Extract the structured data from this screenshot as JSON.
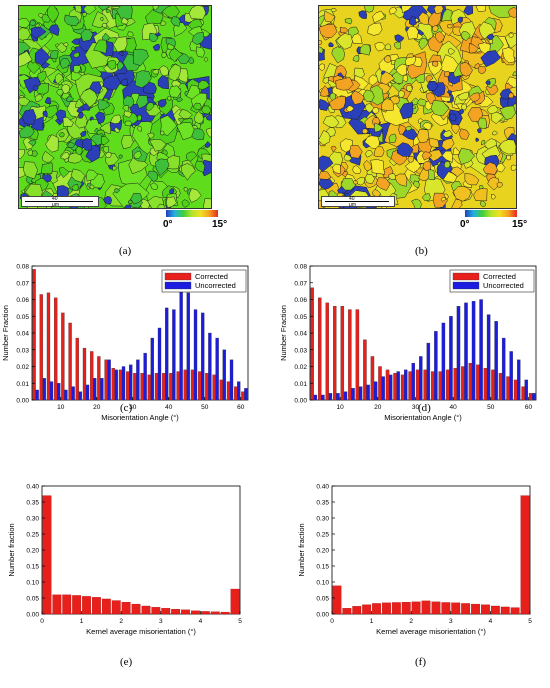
{
  "maps": [
    {
      "panel_label": "(a)",
      "scale_text": "40 μm",
      "cb_min": "0°",
      "cb_max": "15°",
      "base_color": "#5fdc1c",
      "colors": [
        "#4fd01a",
        "#6ee324",
        "#3dbf3a",
        "#2a3fb8",
        "#89e02a",
        "#a6e83a"
      ]
    },
    {
      "panel_label": "(b)",
      "scale_text": "40 μm",
      "cb_min": "0°",
      "cb_max": "15°",
      "base_color": "#e8d41f",
      "colors": [
        "#f0c020",
        "#d9e62c",
        "#9cd829",
        "#f2a322",
        "#2a3fb8",
        "#f5e62e"
      ]
    }
  ],
  "colorbar_colors": [
    "#1f3fbf",
    "#23b0e0",
    "#3dcf3a",
    "#b6e32a",
    "#f0e020",
    "#f5a020",
    "#e8281e"
  ],
  "chart_data": [
    {
      "type": "bar",
      "panel_label": "(c)",
      "xlabel": "Misorientation Angle (°)",
      "ylabel": "Number Fraction",
      "xlim": [
        2,
        62
      ],
      "ylim": [
        0,
        0.08
      ],
      "xticks": [
        "10",
        "20",
        "30",
        "40",
        "50",
        "60"
      ],
      "yticks": [
        "0.00",
        "0.01",
        "0.02",
        "0.03",
        "0.04",
        "0.05",
        "0.06",
        "0.07",
        "0.08"
      ],
      "legend_position": "top-right",
      "series": [
        {
          "name": "Corrected",
          "color": "#e8201c",
          "x": [
            3,
            5,
            7,
            9,
            11,
            13,
            15,
            17,
            19,
            21,
            23,
            25,
            27,
            29,
            31,
            33,
            35,
            37,
            39,
            41,
            43,
            45,
            47,
            49,
            51,
            53,
            55,
            57,
            59,
            61
          ],
          "values": [
            0.078,
            0.063,
            0.064,
            0.061,
            0.052,
            0.046,
            0.037,
            0.031,
            0.029,
            0.026,
            0.024,
            0.019,
            0.018,
            0.017,
            0.016,
            0.016,
            0.015,
            0.016,
            0.016,
            0.016,
            0.017,
            0.018,
            0.018,
            0.017,
            0.016,
            0.015,
            0.012,
            0.011,
            0.008,
            0.005
          ]
        },
        {
          "name": "Uncorrected",
          "color": "#1c1ce0",
          "x": [
            3,
            5,
            7,
            9,
            11,
            13,
            15,
            17,
            19,
            21,
            23,
            25,
            27,
            29,
            31,
            33,
            35,
            37,
            39,
            41,
            43,
            45,
            47,
            49,
            51,
            53,
            55,
            57,
            59,
            61
          ],
          "values": [
            0.006,
            0.013,
            0.011,
            0.01,
            0.006,
            0.008,
            0.005,
            0.009,
            0.013,
            0.013,
            0.024,
            0.018,
            0.02,
            0.021,
            0.024,
            0.028,
            0.037,
            0.043,
            0.055,
            0.054,
            0.065,
            0.064,
            0.054,
            0.052,
            0.04,
            0.037,
            0.03,
            0.024,
            0.011,
            0.007
          ]
        }
      ]
    },
    {
      "type": "bar",
      "panel_label": "(d)",
      "xlabel": "Misorientation Angle (°)",
      "ylabel": "Number Fraction",
      "xlim": [
        2,
        62
      ],
      "ylim": [
        0,
        0.08
      ],
      "xticks": [
        "10",
        "20",
        "30",
        "40",
        "50",
        "60"
      ],
      "yticks": [
        "0.00",
        "0.01",
        "0.02",
        "0.03",
        "0.04",
        "0.05",
        "0.06",
        "0.07",
        "0.08"
      ],
      "legend_position": "top-right",
      "series": [
        {
          "name": "Corrected",
          "color": "#e8201c",
          "x": [
            3,
            5,
            7,
            9,
            11,
            13,
            15,
            17,
            19,
            21,
            23,
            25,
            27,
            29,
            31,
            33,
            35,
            37,
            39,
            41,
            43,
            45,
            47,
            49,
            51,
            53,
            55,
            57,
            59,
            61
          ],
          "values": [
            0.067,
            0.061,
            0.058,
            0.056,
            0.056,
            0.054,
            0.054,
            0.036,
            0.026,
            0.02,
            0.018,
            0.016,
            0.015,
            0.017,
            0.018,
            0.018,
            0.017,
            0.017,
            0.018,
            0.019,
            0.02,
            0.022,
            0.021,
            0.019,
            0.018,
            0.016,
            0.014,
            0.012,
            0.008,
            0.004
          ]
        },
        {
          "name": "Uncorrected",
          "color": "#1c1ce0",
          "x": [
            3,
            5,
            7,
            9,
            11,
            13,
            15,
            17,
            19,
            21,
            23,
            25,
            27,
            29,
            31,
            33,
            35,
            37,
            39,
            41,
            43,
            45,
            47,
            49,
            51,
            53,
            55,
            57,
            59,
            61
          ],
          "values": [
            0.003,
            0.003,
            0.004,
            0.004,
            0.005,
            0.007,
            0.008,
            0.009,
            0.011,
            0.014,
            0.015,
            0.017,
            0.018,
            0.022,
            0.026,
            0.034,
            0.041,
            0.046,
            0.05,
            0.056,
            0.058,
            0.059,
            0.06,
            0.051,
            0.047,
            0.037,
            0.029,
            0.024,
            0.012,
            0.004
          ]
        }
      ]
    },
    {
      "type": "bar",
      "panel_label": "(e)",
      "xlabel": "Kernel average misorientation (°)",
      "ylabel": "Number fraction",
      "xlim": [
        0,
        5
      ],
      "ylim": [
        0,
        0.4
      ],
      "xticks": [
        "0",
        "1",
        "2",
        "3",
        "4",
        "5"
      ],
      "yticks": [
        "0.00",
        "0.05",
        "0.10",
        "0.15",
        "0.20",
        "0.25",
        "0.30",
        "0.35",
        "0.40"
      ],
      "series": [
        {
          "name": "",
          "color": "#e8201c",
          "x": [
            0.125,
            0.375,
            0.625,
            0.875,
            1.125,
            1.375,
            1.625,
            1.875,
            2.125,
            2.375,
            2.625,
            2.875,
            3.125,
            3.375,
            3.625,
            3.875,
            4.125,
            4.375,
            4.625,
            4.875
          ],
          "values": [
            0.37,
            0.06,
            0.06,
            0.058,
            0.055,
            0.052,
            0.047,
            0.042,
            0.037,
            0.031,
            0.025,
            0.021,
            0.018,
            0.015,
            0.013,
            0.01,
            0.008,
            0.007,
            0.006,
            0.078
          ]
        }
      ]
    },
    {
      "type": "bar",
      "panel_label": "(f)",
      "xlabel": "Kernel average misorientation (°)",
      "ylabel": "Number fraction",
      "xlim": [
        0,
        5
      ],
      "ylim": [
        0,
        0.4
      ],
      "xticks": [
        "0",
        "1",
        "2",
        "3",
        "4",
        "5"
      ],
      "yticks": [
        "0.00",
        "0.05",
        "0.10",
        "0.15",
        "0.20",
        "0.25",
        "0.30",
        "0.35",
        "0.40"
      ],
      "series": [
        {
          "name": "",
          "color": "#e8201c",
          "x": [
            0.125,
            0.375,
            0.625,
            0.875,
            1.125,
            1.375,
            1.625,
            1.875,
            2.125,
            2.375,
            2.625,
            2.875,
            3.125,
            3.375,
            3.625,
            3.875,
            4.125,
            4.375,
            4.625,
            4.875
          ],
          "values": [
            0.088,
            0.018,
            0.024,
            0.029,
            0.033,
            0.035,
            0.036,
            0.037,
            0.038,
            0.041,
            0.038,
            0.036,
            0.035,
            0.033,
            0.031,
            0.029,
            0.025,
            0.022,
            0.02,
            0.37
          ]
        }
      ]
    }
  ]
}
